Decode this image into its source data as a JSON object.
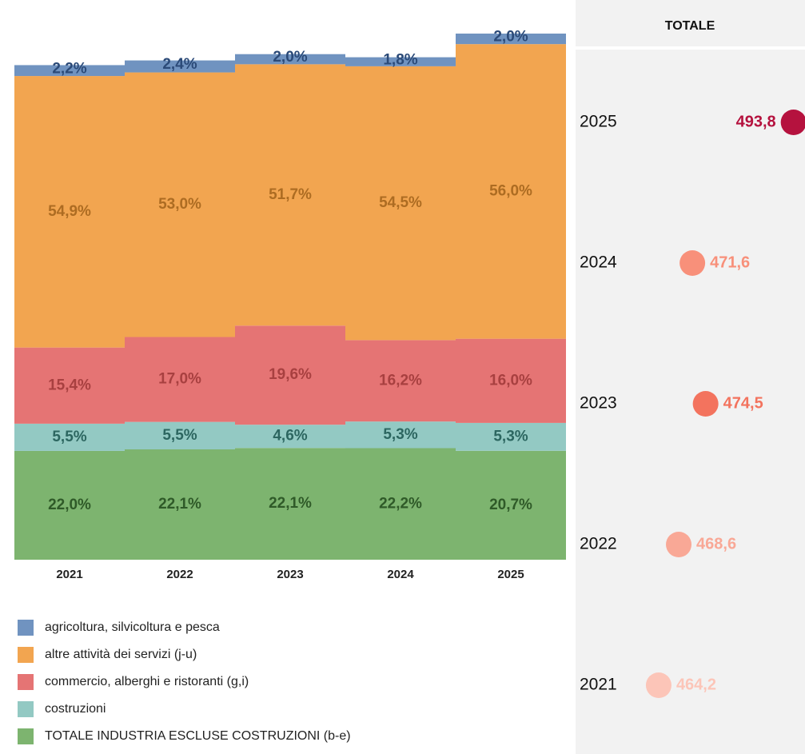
{
  "chart_data": [
    {
      "type": "bar",
      "stacked": true,
      "categories": [
        "2021",
        "2022",
        "2023",
        "2024",
        "2025"
      ],
      "series": [
        {
          "name": "TOTALE INDUSTRIA ESCLUSE COSTRUZIONI (b-e)",
          "color": "#7db46f",
          "label_color": "#2f5a28",
          "values": [
            22.0,
            22.1,
            22.1,
            22.2,
            20.7
          ],
          "value_labels": [
            "22,0%",
            "22,1%",
            "22,1%",
            "22,2%",
            "20,7%"
          ]
        },
        {
          "name": "costruzioni",
          "color": "#93c9c3",
          "label_color": "#2c6660",
          "values": [
            5.5,
            5.5,
            4.6,
            5.3,
            5.3
          ],
          "value_labels": [
            "5,5%",
            "5,5%",
            "4,6%",
            "5,3%",
            "5,3%"
          ]
        },
        {
          "name": "commercio, alberghi e ristoranti (g,i)",
          "color": "#e57474",
          "label_color": "#a84040",
          "values": [
            15.4,
            17.0,
            19.6,
            16.2,
            16.0
          ],
          "value_labels": [
            "15,4%",
            "17,0%",
            "19,6%",
            "16,2%",
            "16,0%"
          ]
        },
        {
          "name": "altre attività dei servizi (j-u)",
          "color": "#f2a550",
          "label_color": "#ad6c22",
          "values": [
            54.9,
            53.0,
            51.7,
            54.5,
            56.0
          ],
          "value_labels": [
            "54,9%",
            "53,0%",
            "51,7%",
            "54,5%",
            "56,0%"
          ]
        },
        {
          "name": "agricoltura, silvicoltura e pesca",
          "color": "#7093c0",
          "label_color": "#2b4a78",
          "values": [
            2.2,
            2.4,
            2.0,
            1.8,
            2.0
          ],
          "value_labels": [
            "2,2%",
            "2,4%",
            "2,0%",
            "1,8%",
            "2,0%"
          ]
        }
      ]
    },
    {
      "type": "dot",
      "title": "TOTALE",
      "categories": [
        "2025",
        "2024",
        "2023",
        "2022",
        "2021"
      ],
      "values": [
        493.8,
        471.6,
        474.5,
        468.6,
        464.2
      ],
      "value_labels": [
        "493,8",
        "471,6",
        "474,5",
        "468,6",
        "464,2"
      ],
      "colors": [
        "#b5123e",
        "#f8907a",
        "#f3735e",
        "#f9a896",
        "#fcc5b8"
      ],
      "xlim": [
        450,
        500
      ]
    }
  ]
}
